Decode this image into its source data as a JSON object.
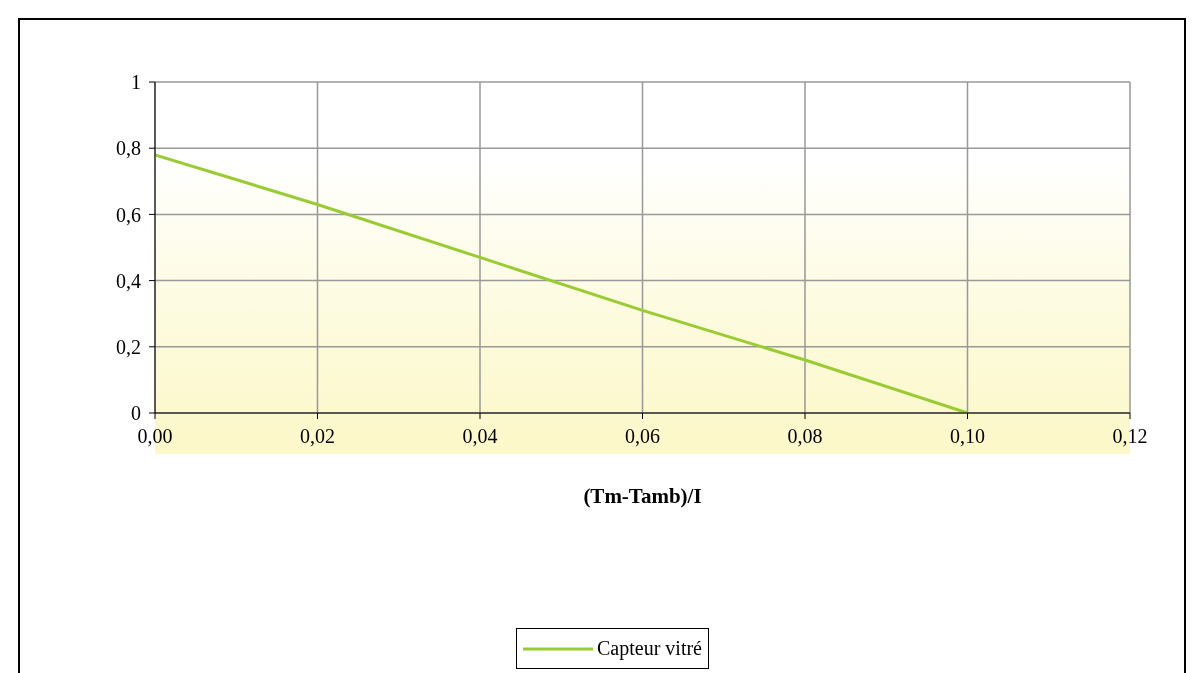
{
  "chart_data": {
    "type": "line",
    "xlabel": "(Tm-Tamb)/I",
    "x": [
      0,
      0.02,
      0.04,
      0.06,
      0.08,
      0.1
    ],
    "series": [
      {
        "name": "Capteur vitré",
        "color": "#99cc33",
        "values": [
          0.78,
          0.63,
          0.47,
          0.31,
          0.16,
          0
        ]
      }
    ],
    "xlim": [
      0,
      0.12
    ],
    "xticks": [
      {
        "value": 0,
        "label": "0,00"
      },
      {
        "value": 0.02,
        "label": "0,02"
      },
      {
        "value": 0.04,
        "label": "0,04"
      },
      {
        "value": 0.06,
        "label": "0,06"
      },
      {
        "value": 0.08,
        "label": "0,08"
      },
      {
        "value": 0.1,
        "label": "0,10"
      },
      {
        "value": 0.12,
        "label": "0,12"
      }
    ],
    "ylim": [
      0,
      1
    ],
    "yticks": [
      0,
      {
        "value": 0.2,
        "label": "0,2"
      },
      {
        "value": 0.4,
        "label": "0,4"
      },
      {
        "value": 0.6,
        "label": "0,6"
      },
      {
        "value": 0.8,
        "label": "0,8"
      },
      1
    ],
    "grid": true,
    "legend": "bottom",
    "marker": "none",
    "line_style": "solid"
  }
}
